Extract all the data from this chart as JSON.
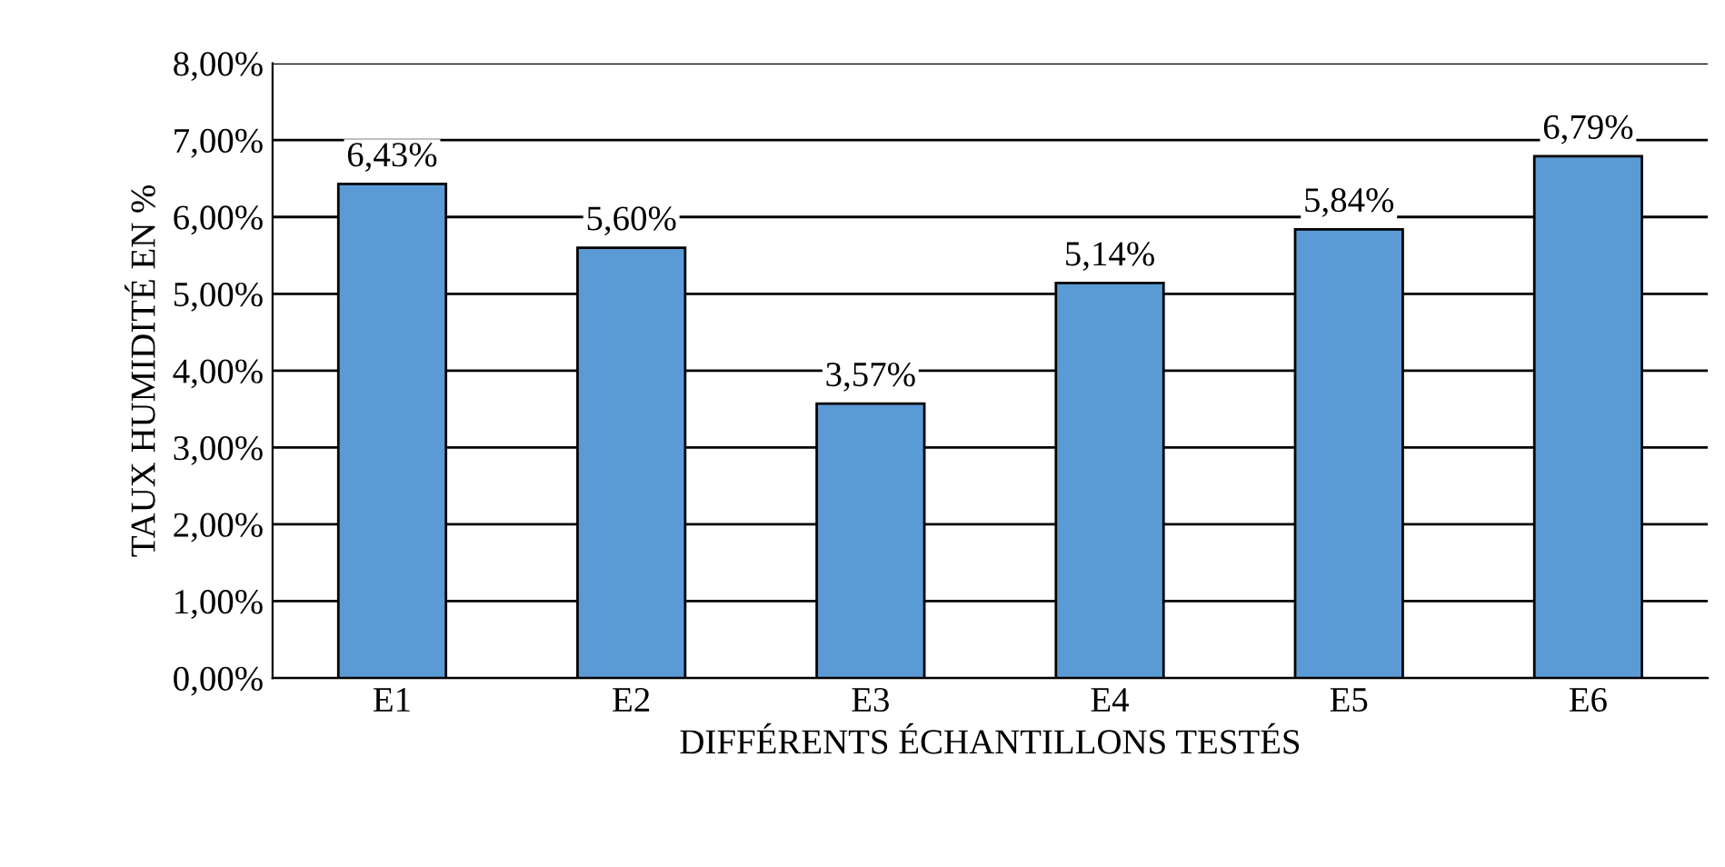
{
  "chart_data": {
    "type": "bar",
    "xlabel": "DIFFÉRENTS ÉCHANTILLONS TESTÉS",
    "ylabel": "TAUX HUMIDITÉ EN %",
    "categories": [
      "E1",
      "E2",
      "E3",
      "E4",
      "E5",
      "E6"
    ],
    "values": [
      6.43,
      5.6,
      3.57,
      5.14,
      5.84,
      6.79
    ],
    "value_labels": [
      "6,43%",
      "5,60%",
      "3,57%",
      "5,14%",
      "5,84%",
      "6,79%"
    ],
    "color": "#5b9bd5",
    "ylim": [
      0,
      8
    ],
    "yticks": [
      {
        "value": 0,
        "label": "0,00%"
      },
      {
        "value": 1,
        "label": "1,00%"
      },
      {
        "value": 2,
        "label": "2,00%"
      },
      {
        "value": 3,
        "label": "3,00%"
      },
      {
        "value": 4,
        "label": "4,00%"
      },
      {
        "value": 5,
        "label": "5,00%"
      },
      {
        "value": 6,
        "label": "6,00%"
      },
      {
        "value": 7,
        "label": "7,00%"
      },
      {
        "value": 8,
        "label": "8,00%"
      }
    ],
    "grid": "y",
    "legend": false
  }
}
